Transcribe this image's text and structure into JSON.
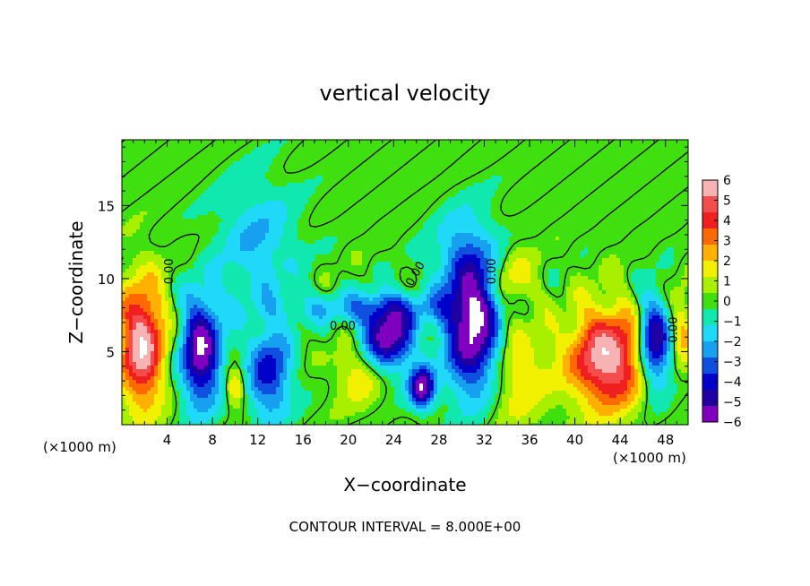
{
  "chart_data": {
    "type": "heatmap",
    "title": "vertical velocity",
    "xlabel": "X−coordinate",
    "ylabel": "Z−coordinate",
    "x_unit_label_left": "(×1000 m)",
    "x_unit_label_right": "(×1000 m)",
    "footer": "CONTOUR INTERVAL = 8.000E+00",
    "xlim": [
      0,
      50
    ],
    "ylim": [
      0,
      19.5
    ],
    "x_ticks": [
      4,
      8,
      12,
      16,
      20,
      24,
      28,
      32,
      36,
      40,
      44,
      48
    ],
    "y_ticks": [
      5,
      10,
      15
    ],
    "colorbar": {
      "range": [
        -6,
        6
      ],
      "ticks": [
        6,
        5,
        4,
        3,
        2,
        1,
        0,
        -1,
        -2,
        -3,
        -4,
        -5,
        -6
      ],
      "tick_labels": [
        "6",
        "5",
        "4",
        "3",
        "2",
        "1",
        "0",
        "−1",
        "−2",
        "−3",
        "−4",
        "−5",
        "−6"
      ],
      "colors": [
        "#f7b3b3",
        "#f44d4d",
        "#f02020",
        "#ff6a00",
        "#ffb000",
        "#f0f000",
        "#a8f000",
        "#40e010",
        "#10e8b0",
        "#20d8f8",
        "#18a0f0",
        "#1050e0",
        "#0000c8",
        "#2000a0",
        "#8000c0"
      ]
    },
    "contour_label": "0.00",
    "contour_interval": 8.0,
    "features": [
      {
        "kind": "updraft",
        "x": 1.8,
        "z": 5.5,
        "peak": 6,
        "sx": 1.4,
        "sz": 3.0
      },
      {
        "kind": "downdraft",
        "x": 7.0,
        "z": 5.0,
        "peak": -6,
        "sx": 1.3,
        "sz": 2.6
      },
      {
        "kind": "downdraft",
        "x": 13.0,
        "z": 3.5,
        "peak": -4,
        "sx": 1.4,
        "sz": 2.2
      },
      {
        "kind": "updraft",
        "x": 10.0,
        "z": 2.6,
        "peak": 3,
        "sx": 0.6,
        "sz": 0.9
      },
      {
        "kind": "updraft",
        "x": 21.0,
        "z": 3.5,
        "peak": 2,
        "sx": 1.5,
        "sz": 1.5
      },
      {
        "kind": "downdraft",
        "x": 23.5,
        "z": 6.0,
        "peak": -6,
        "sx": 1.6,
        "sz": 1.6
      },
      {
        "kind": "downdraft",
        "x": 26.5,
        "z": 2.5,
        "peak": -6,
        "sx": 0.8,
        "sz": 1.0
      },
      {
        "kind": "downdraft",
        "x": 31.0,
        "z": 6.0,
        "peak": -6,
        "sx": 1.7,
        "sz": 2.8
      },
      {
        "kind": "downdraft",
        "x": 30.5,
        "z": 11.0,
        "peak": -3,
        "sx": 2.0,
        "sz": 2.5
      },
      {
        "kind": "updraft",
        "x": 35.0,
        "z": 3.5,
        "peak": 2,
        "sx": 1.8,
        "sz": 2.5
      },
      {
        "kind": "updraft",
        "x": 34.5,
        "z": 10.0,
        "peak": 2,
        "sx": 1.3,
        "sz": 1.5
      },
      {
        "kind": "updraft",
        "x": 43.0,
        "z": 4.5,
        "peak": 6,
        "sx": 2.5,
        "sz": 2.4
      },
      {
        "kind": "downdraft",
        "x": 47.0,
        "z": 5.5,
        "peak": -6,
        "sx": 1.1,
        "sz": 2.2
      },
      {
        "kind": "updraft",
        "x": 49.5,
        "z": 6.5,
        "peak": 2,
        "sx": 0.8,
        "sz": 2.0
      },
      {
        "kind": "downdraft",
        "x": 22.0,
        "z": 8.0,
        "peak": -2,
        "sx": 6.0,
        "sz": 0.8
      },
      {
        "kind": "downdraft",
        "x": 12.0,
        "z": 12.5,
        "peak": -2,
        "sx": 2.5,
        "sz": 3.0
      }
    ]
  }
}
